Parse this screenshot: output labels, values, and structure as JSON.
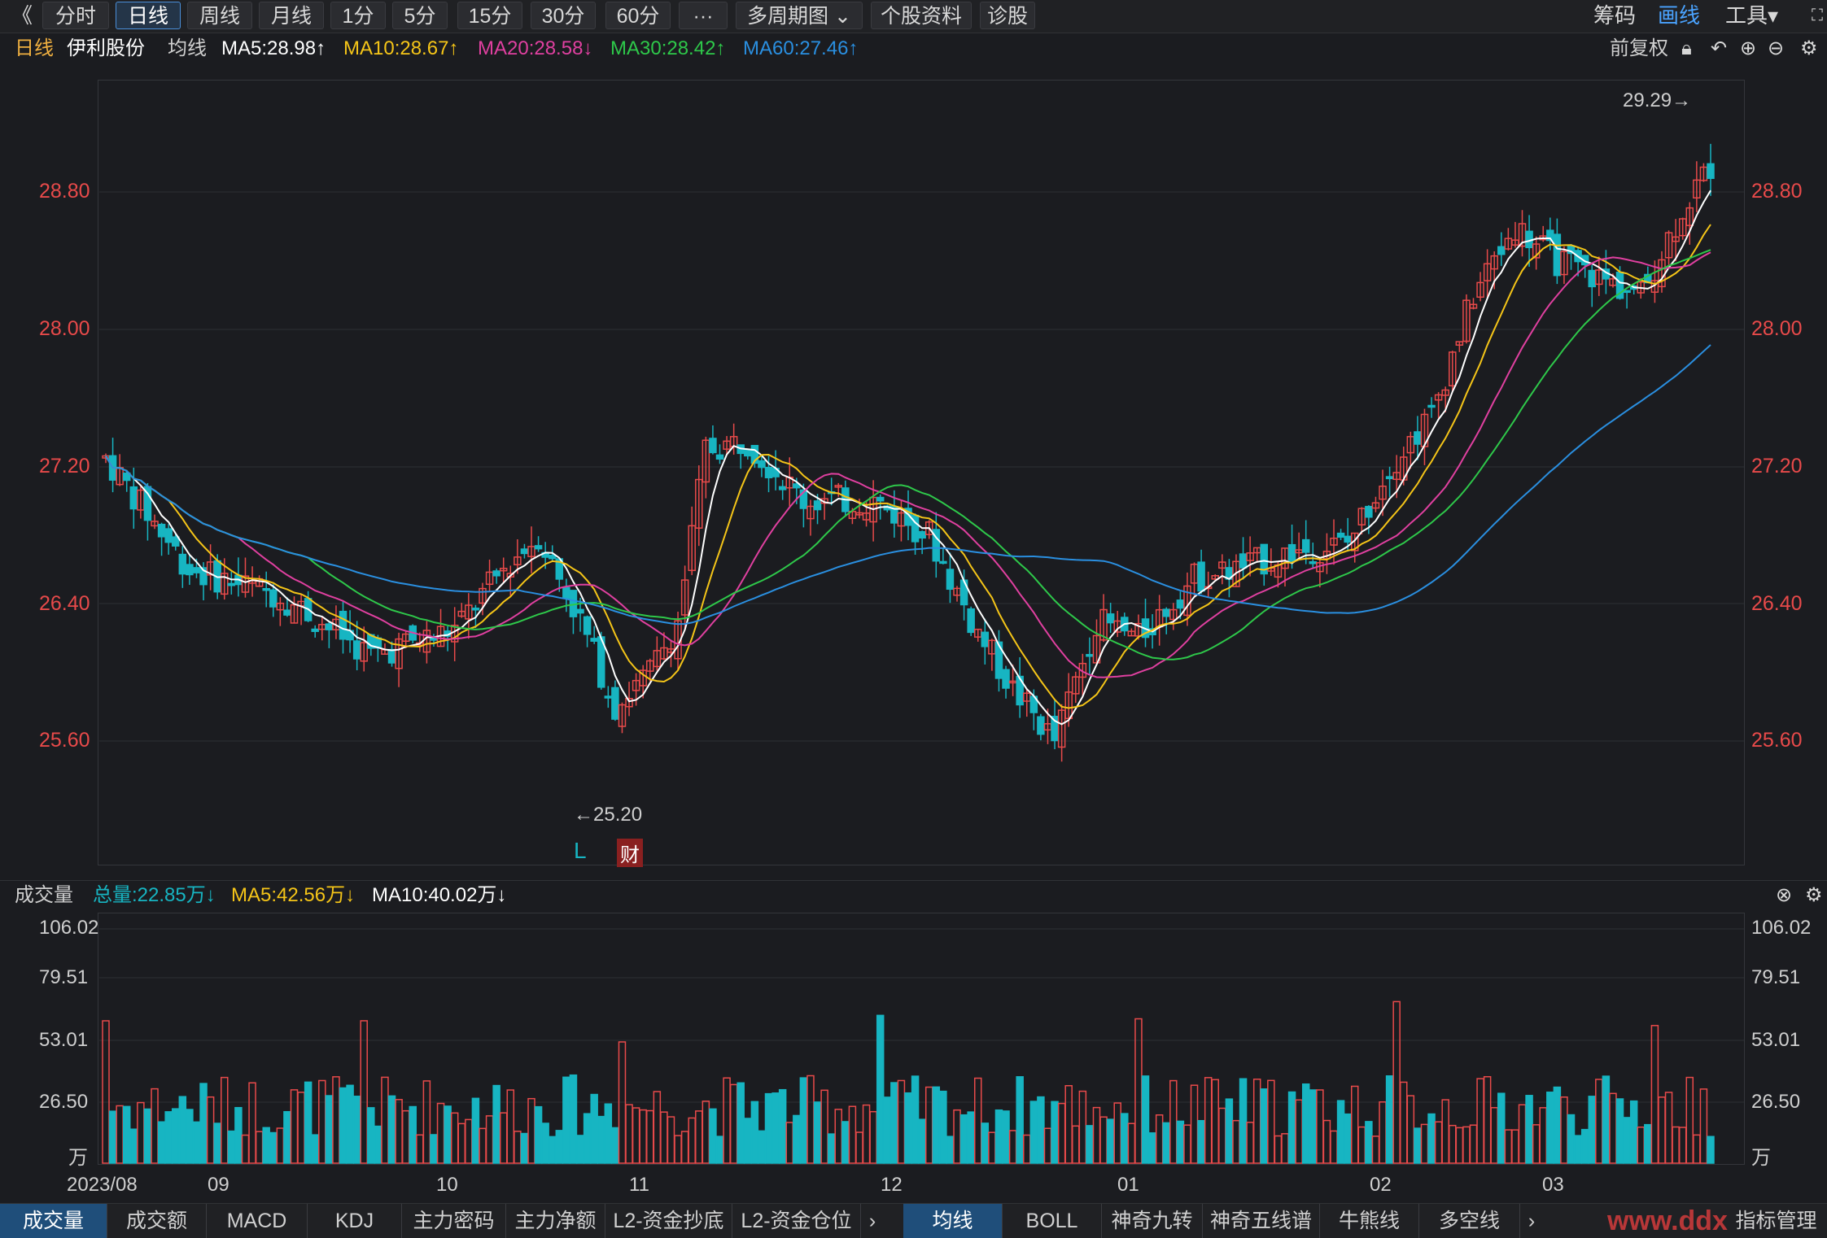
{
  "topbar": {
    "back": "《",
    "tabs": [
      "分时",
      "日线",
      "周线",
      "月线",
      "1分",
      "5分",
      "15分",
      "30分",
      "60分",
      "···",
      "多周期图 ⌄",
      "个股资料",
      "诊股"
    ],
    "active_tab": 1,
    "right": {
      "chips": "筹码",
      "draw": "画线",
      "tools": "工具▾"
    }
  },
  "info": {
    "period": "日线",
    "stock": "伊利股份",
    "ma_label": "均线",
    "ma5": "MA5:28.98↑",
    "ma10": "MA10:28.67↑",
    "ma20": "MA20:28.58↓",
    "ma30": "MA30:28.42↑",
    "ma60": "MA60:27.46↑",
    "adjust": "前复权"
  },
  "colors": {
    "up": "#e84a4a",
    "down": "#17b5c2",
    "ma5": "#ffffff",
    "ma10": "#f5c518",
    "ma20": "#e040a0",
    "ma30": "#2ec84a",
    "ma60": "#2a8fe0"
  },
  "price_axis": [
    "28.80",
    "28.00",
    "27.20",
    "26.40",
    "25.60"
  ],
  "annotations": {
    "high": "29.29→",
    "low": "←25.20",
    "l_mark": "L",
    "fin_mark": "财"
  },
  "volume": {
    "title": "成交量",
    "total": "总量:22.85万↓",
    "ma5": "MA5:42.56万↓",
    "ma10": "MA10:40.02万↓",
    "axis": [
      "106.02",
      "79.51",
      "53.01",
      "26.50",
      "万"
    ]
  },
  "x_axis": [
    "2023/08",
    "09",
    "10",
    "11",
    "12",
    "01",
    "02",
    "03"
  ],
  "bottom_tabs_left": [
    "成交量",
    "成交额",
    "MACD",
    "KDJ",
    "主力密码",
    "主力净额",
    "L2-资金抄底",
    "L2-资金仓位"
  ],
  "bottom_tabs_right": [
    "均线",
    "BOLL",
    "神奇九转",
    "神奇五线谱",
    "牛熊线",
    "多空线"
  ],
  "indicator_mgr": "指标管理",
  "watermark": "www.ddx"
}
